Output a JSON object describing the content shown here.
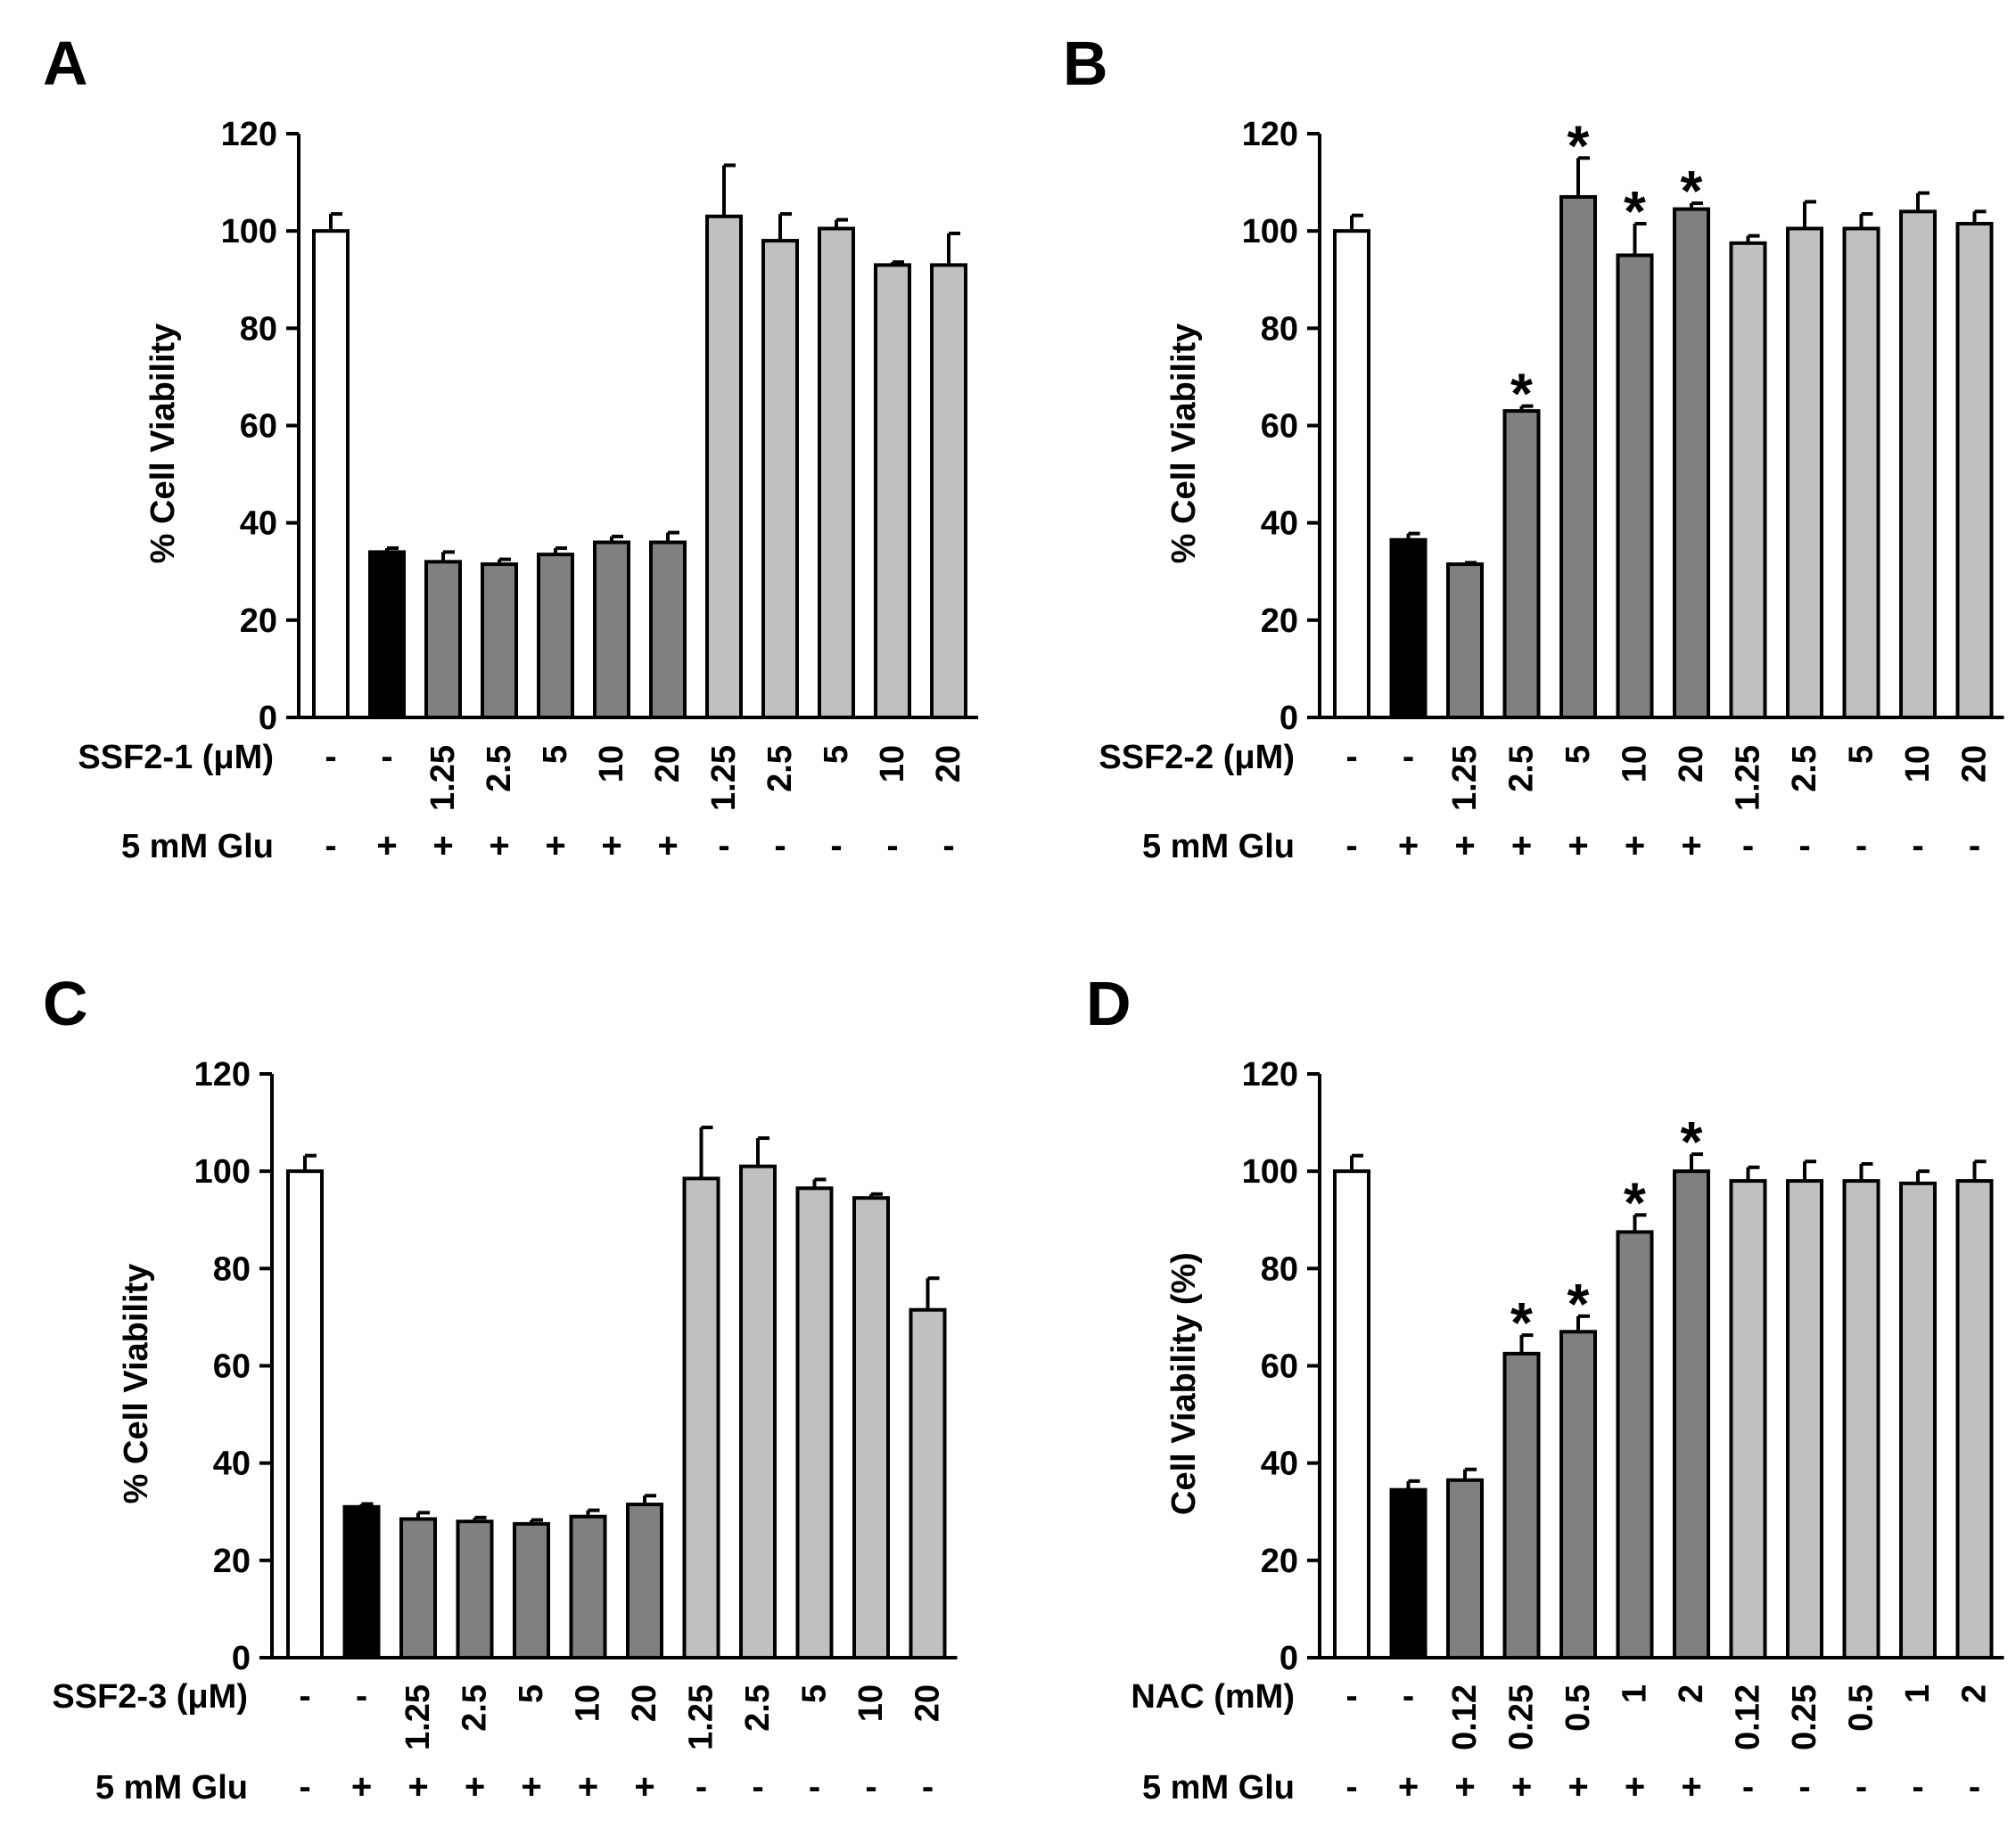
{
  "chart_data": [
    {
      "type": "bar",
      "panel": "A",
      "ylabel": "% Cell Viability",
      "ylim": [
        0,
        120
      ],
      "yticks": [
        0,
        20,
        40,
        60,
        80,
        100,
        120
      ],
      "values": [
        100,
        34,
        32,
        31.5,
        33.5,
        36,
        36,
        103,
        98,
        100.5,
        93,
        93
      ],
      "errors": [
        3.5,
        0.8,
        2,
        1,
        1.3,
        1.2,
        2,
        10.5,
        5.5,
        1.8,
        0.6,
        6.5
      ],
      "fills": [
        "#ffffff",
        "#000000",
        "#808080",
        "#808080",
        "#808080",
        "#808080",
        "#808080",
        "#c0c0c0",
        "#c0c0c0",
        "#c0c0c0",
        "#c0c0c0",
        "#c0c0c0"
      ],
      "significant": [
        false,
        false,
        false,
        false,
        false,
        false,
        false,
        false,
        false,
        false,
        false,
        false
      ],
      "treatment_label": "SSF2-1 (μM)",
      "treatment_values": [
        "-",
        "-",
        "1.25",
        "2.5",
        "5",
        "10",
        "20",
        "1.25",
        "2.5",
        "5",
        "10",
        "20"
      ],
      "glu_label": "5 mM Glu",
      "glu_values": [
        "-",
        "+",
        "+",
        "+",
        "+",
        "+",
        "+",
        "-",
        "-",
        "-",
        "-",
        "-"
      ]
    },
    {
      "type": "bar",
      "panel": "B",
      "ylabel": "% Cell Viability",
      "ylim": [
        0,
        120
      ],
      "yticks": [
        0,
        20,
        40,
        60,
        80,
        100,
        120
      ],
      "values": [
        100,
        36.5,
        31.5,
        63,
        107,
        95,
        104.5,
        97.5,
        100.5,
        100.5,
        104,
        101.5
      ],
      "errors": [
        3.2,
        1.3,
        0.3,
        1,
        8,
        6.5,
        1.2,
        1.5,
        5.5,
        3,
        3.8,
        2.5
      ],
      "fills": [
        "#ffffff",
        "#000000",
        "#808080",
        "#808080",
        "#808080",
        "#808080",
        "#808080",
        "#c0c0c0",
        "#c0c0c0",
        "#c0c0c0",
        "#c0c0c0",
        "#c0c0c0"
      ],
      "significant": [
        false,
        false,
        false,
        true,
        true,
        true,
        true,
        false,
        false,
        false,
        false,
        false
      ],
      "treatment_label": "SSF2-2 (μM)",
      "treatment_values": [
        "-",
        "-",
        "1.25",
        "2.5",
        "5",
        "10",
        "20",
        "1.25",
        "2.5",
        "5",
        "10",
        "20"
      ],
      "glu_label": "5 mM Glu",
      "glu_values": [
        "-",
        "+",
        "+",
        "+",
        "+",
        "+",
        "+",
        "-",
        "-",
        "-",
        "-",
        "-"
      ]
    },
    {
      "type": "bar",
      "panel": "C",
      "ylabel": "% Cell Viability",
      "ylim": [
        0,
        120
      ],
      "yticks": [
        0,
        20,
        40,
        60,
        80,
        100,
        120
      ],
      "values": [
        100,
        31,
        28.5,
        28,
        27.5,
        29,
        31.5,
        98.5,
        101,
        96.5,
        94.5,
        71.5
      ],
      "errors": [
        3.2,
        0.6,
        1.3,
        0.8,
        0.8,
        1.3,
        1.8,
        10.5,
        5.8,
        1.8,
        0.8,
        6.5
      ],
      "fills": [
        "#ffffff",
        "#000000",
        "#808080",
        "#808080",
        "#808080",
        "#808080",
        "#808080",
        "#c0c0c0",
        "#c0c0c0",
        "#c0c0c0",
        "#c0c0c0",
        "#c0c0c0"
      ],
      "significant": [
        false,
        false,
        false,
        false,
        false,
        false,
        false,
        false,
        false,
        false,
        false,
        false
      ],
      "treatment_label": "SSF2-3 (μM)",
      "treatment_values": [
        "-",
        "-",
        "1.25",
        "2.5",
        "5",
        "10",
        "20",
        "1.25",
        "2.5",
        "5",
        "10",
        "20"
      ],
      "glu_label": "5 mM Glu",
      "glu_values": [
        "-",
        "+",
        "+",
        "+",
        "+",
        "+",
        "+",
        "-",
        "-",
        "-",
        "-",
        "-"
      ]
    },
    {
      "type": "bar",
      "panel": "D",
      "ylabel": "Cell Viability (%)",
      "ylim": [
        0,
        120
      ],
      "yticks": [
        0,
        20,
        40,
        60,
        80,
        100,
        120
      ],
      "values": [
        100,
        34.5,
        36.5,
        62.5,
        67,
        87.5,
        100,
        98,
        98,
        98,
        97.5,
        98
      ],
      "errors": [
        3.2,
        1.8,
        2.2,
        3.8,
        3.2,
        3.5,
        3.5,
        2.8,
        4,
        3.5,
        2.5,
        4
      ],
      "fills": [
        "#ffffff",
        "#000000",
        "#808080",
        "#808080",
        "#808080",
        "#808080",
        "#808080",
        "#c0c0c0",
        "#c0c0c0",
        "#c0c0c0",
        "#c0c0c0",
        "#c0c0c0"
      ],
      "significant": [
        false,
        false,
        false,
        true,
        true,
        true,
        true,
        false,
        false,
        false,
        false,
        false
      ],
      "treatment_label": "NAC (mM)",
      "treatment_values": [
        "-",
        "-",
        "0.12",
        "0.25",
        "0.5",
        "1",
        "2",
        "0.12",
        "0.25",
        "0.5",
        "1",
        "2"
      ],
      "glu_label": "5 mM Glu",
      "glu_values": [
        "-",
        "+",
        "+",
        "+",
        "+",
        "+",
        "+",
        "-",
        "-",
        "-",
        "-",
        "-"
      ]
    }
  ]
}
